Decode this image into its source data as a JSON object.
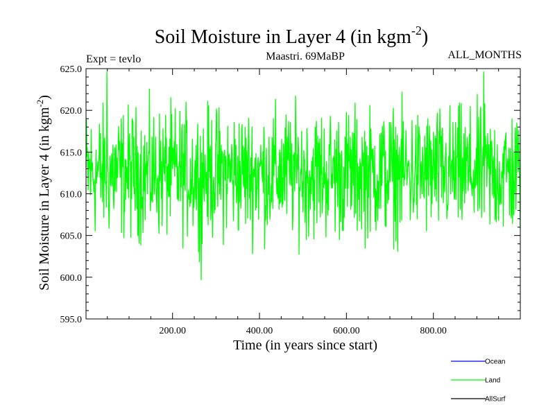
{
  "chart_data": {
    "type": "line",
    "title": "Soil Moisture in Layer 4 (in kgm",
    "title_sup": "-2",
    "title_close": ")",
    "subtitle_left": "Expt = tevlo",
    "subtitle_center": "Maastri.  69MaBP",
    "subtitle_right": "ALL_MONTHS",
    "xlabel": "Time (in years since start)",
    "ylabel": "Soil Moisture in Layer 4 (in kgm",
    "ylabel_sup": "-2",
    "ylabel_close": ")",
    "xlim": [
      1,
      1000
    ],
    "ylim": [
      595,
      625
    ],
    "xticks": [
      200,
      400,
      600,
      800
    ],
    "xtick_labels": [
      "200.00",
      "400.00",
      "600.00",
      "800.00"
    ],
    "yticks": [
      595,
      600,
      605,
      610,
      615,
      620,
      625
    ],
    "ytick_labels": [
      "595.0",
      "600.0",
      "605.0",
      "610.0",
      "615.0",
      "620.0",
      "625.0"
    ],
    "series": [
      {
        "name": "Ocean",
        "color": "#0000ff",
        "visible": false
      },
      {
        "name": "Land",
        "color": "#00ff00",
        "visible": true,
        "mean": 612.5,
        "typical_min": 603.5,
        "typical_max": 621.5,
        "min": 599.7,
        "max": 624.6,
        "n_points": 1000
      },
      {
        "name": "AllSurf",
        "color": "#000000",
        "visible": false
      }
    ],
    "legend": "bottom-right"
  }
}
